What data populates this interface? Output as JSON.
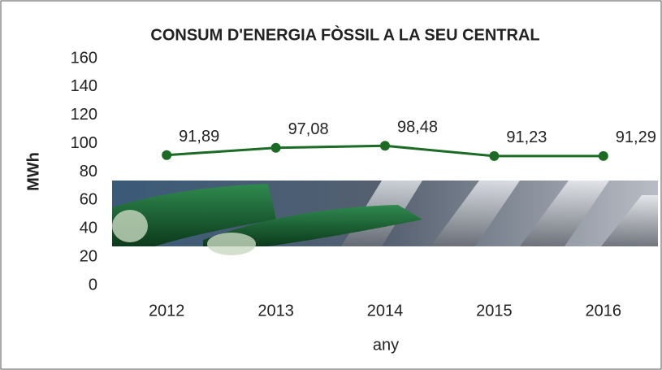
{
  "chart_data": {
    "type": "line",
    "title": "CONSUM D'ENERGIA FÒSSIL A LA SEU CENTRAL",
    "y_label": "MWh",
    "x_label": "any",
    "categories": [
      "2012",
      "2013",
      "2014",
      "2015",
      "2016"
    ],
    "values": [
      91.89,
      97.08,
      98.48,
      91.23,
      91.29
    ],
    "value_labels": [
      "91,89",
      "97,08",
      "98,48",
      "91,23",
      "91,29"
    ],
    "color": "#1b6b25",
    "ylim": [
      0,
      160
    ],
    "yticks": [
      0,
      20,
      40,
      60,
      80,
      100,
      120,
      140,
      160
    ]
  }
}
